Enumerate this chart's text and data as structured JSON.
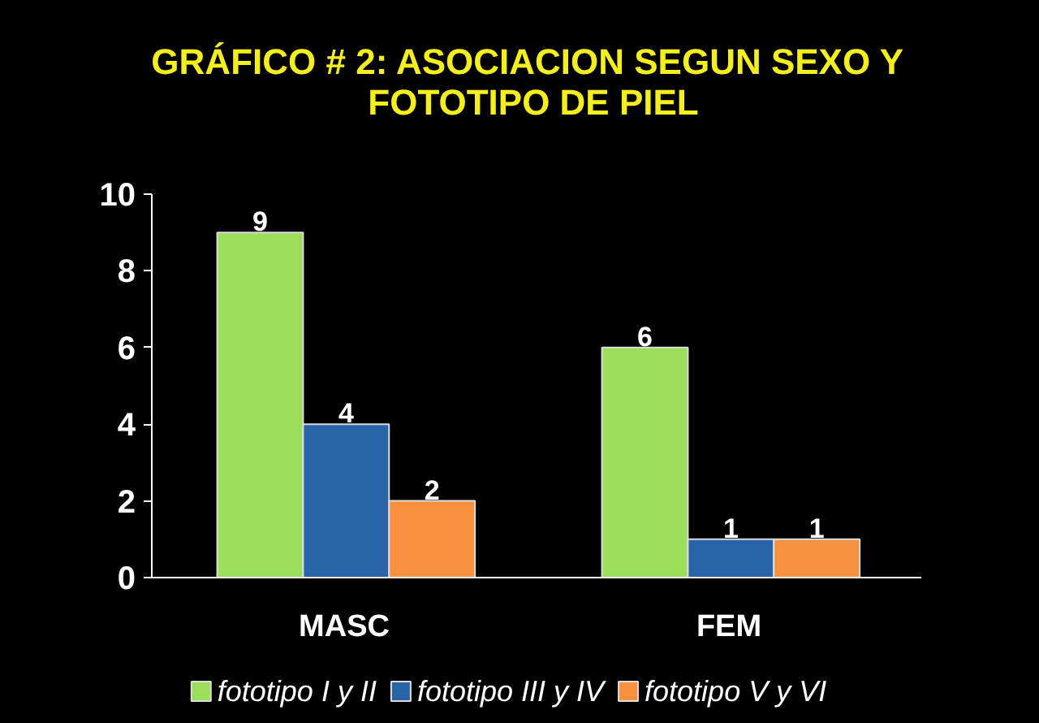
{
  "chart_data": {
    "type": "bar",
    "title": "GRÁFICO # 2:  ASOCIACION SEGUN SEXO Y FOTOTIPO DE PIEL",
    "categories": [
      "MASC",
      "FEM"
    ],
    "series": [
      {
        "name": "fototipo I y II",
        "color": "#9ade5a",
        "values": [
          9,
          6
        ]
      },
      {
        "name": "fototipo  III y IV",
        "color": "#2a64a8",
        "values": [
          4,
          1
        ]
      },
      {
        "name": "fototipo  V  y VI",
        "color": "#f7913f",
        "values": [
          2,
          1
        ]
      }
    ],
    "ylim": [
      0,
      10
    ],
    "yticks": [
      0,
      2,
      4,
      6,
      8,
      10
    ],
    "data_labels": true,
    "legend": "bottom"
  }
}
